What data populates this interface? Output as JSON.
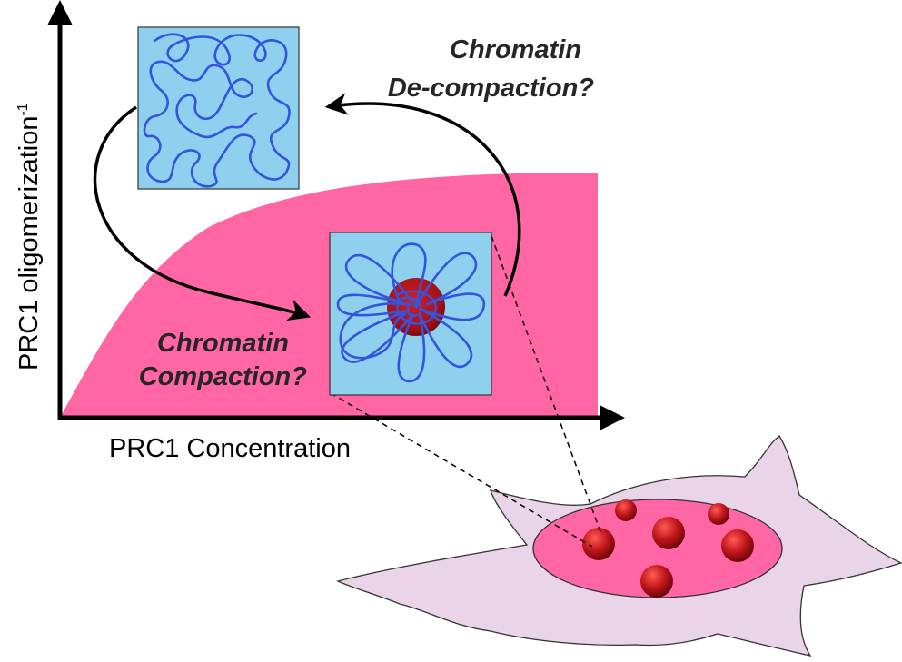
{
  "axes": {
    "x_label": "PRC1 Concentration",
    "y_label": "PRC1 oligomerization",
    "y_label_superscript": "-1"
  },
  "annotations": {
    "decompaction_line1": "Chromatin",
    "decompaction_line2": "De-compaction?",
    "compaction_line1": "Chromatin",
    "compaction_line2": "Compaction?"
  },
  "colors": {
    "phase_region": "#ff66a3",
    "chromatin_box": "#8fd0ef",
    "chromatin_fiber": "#3355dd",
    "condensate": "#b3141a",
    "cell_body": "#ead5e8",
    "nucleus": "#ff66a3"
  }
}
